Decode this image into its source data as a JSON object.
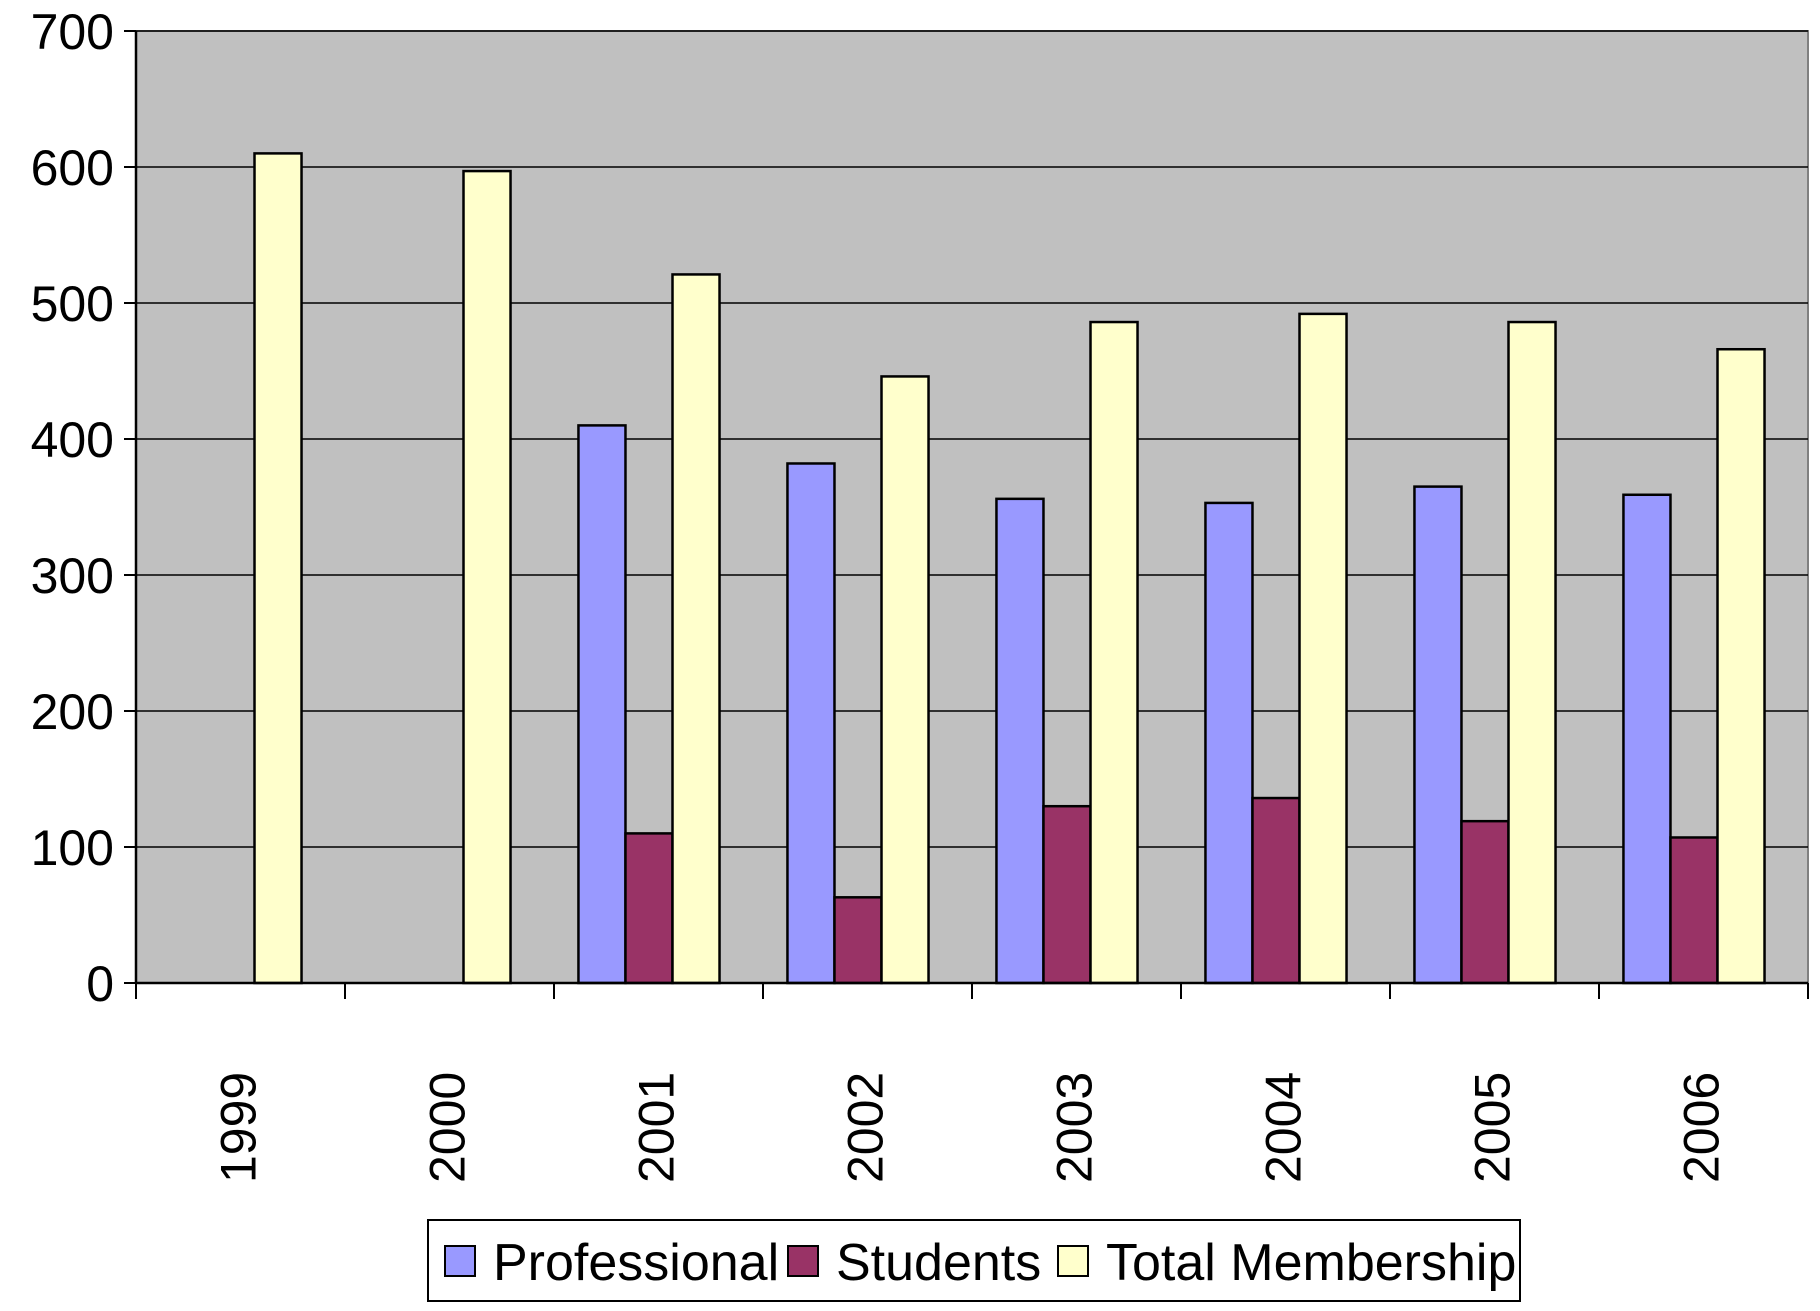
{
  "chart_data": {
    "type": "bar",
    "title": "",
    "xlabel": "",
    "ylabel": "",
    "categories": [
      "1999",
      "2000",
      "2001",
      "2002",
      "2003",
      "2004",
      "2005",
      "2006"
    ],
    "series": [
      {
        "name": "Professional",
        "color": "#9999ff",
        "values": [
          null,
          null,
          410,
          382,
          356,
          353,
          365,
          359
        ]
      },
      {
        "name": "Students",
        "color": "#993366",
        "values": [
          null,
          null,
          110,
          63,
          130,
          136,
          119,
          107
        ]
      },
      {
        "name": "Total Membership",
        "color": "#ffffcc",
        "values": [
          610,
          597,
          521,
          446,
          486,
          492,
          486,
          466
        ]
      }
    ],
    "ylim": [
      0,
      700
    ],
    "yticks": [
      "0",
      "100",
      "200",
      "300",
      "400",
      "500",
      "600",
      "700"
    ],
    "grid": true,
    "plot_background": "#c0c0c0",
    "legend_position": "bottom",
    "x_tick_rotation": "vertical"
  }
}
